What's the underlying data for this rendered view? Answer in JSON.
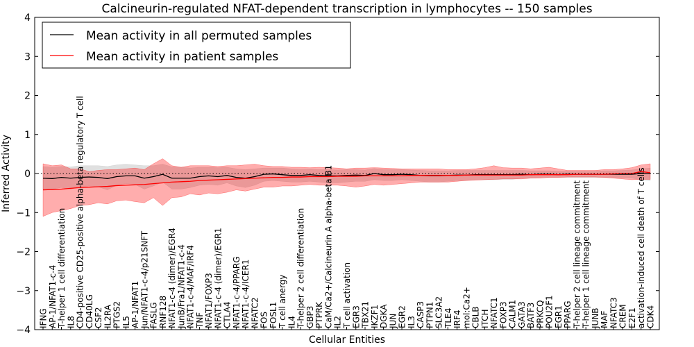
{
  "chart_data": {
    "type": "line",
    "title": "Calcineurin-regulated NFAT-dependent transcription in lymphocytes -- 150 samples",
    "xlabel": "Cellular Entities",
    "ylabel": "Inferred Activity",
    "ylim": [
      -4,
      4
    ],
    "yticks": [
      -4,
      -3,
      -2,
      -1,
      0,
      1,
      2,
      3,
      4
    ],
    "grid": false,
    "legend_position": "top-left",
    "reference_line": {
      "y": 0,
      "style": "dotted"
    },
    "categories": [
      "IFNG",
      "AP-1/NFAT1-c-4",
      "T-helper 1 cell differentiation",
      "IL8",
      "CD4-positive CD25-positive alpha-beta regulatory T cell",
      "CD40LG",
      "CSF2",
      "IL2RA",
      "PTGS2",
      "IL5",
      "AP-1/NFAT1",
      "Jun/NFAT1-c-4/p21SNFT",
      "FASLG",
      "RNF128",
      "NFAT1-c-4 (dimer)/EGR4",
      "JunB/Fra1/NFAT1-c-4",
      "NFAT1-c-4/MAF/IRF4",
      "TNF",
      "NFAT1/FOXP3",
      "NFAT1-c-4 (dimer)/EGR1",
      "CTLA4",
      "NFAT1-c-4/PPARG",
      "NFAT1-c-4/ICER1",
      "NFATC2",
      "FOS",
      "FOSL1",
      "T cell anergy",
      "IL4",
      "T-helper 2 cell differentiation",
      "GBP3",
      "PTPRK",
      "CaM/Ca2+/Calcineurin A alpha-beta B1",
      "IL2",
      "T cell activation",
      "EGR3",
      "TBX21",
      "IKZF1",
      "DGKA",
      "JUN",
      "EGR2",
      "IL3",
      "CASP3",
      "PTPN1",
      "SLC3A2",
      "TLE4",
      "IRF4",
      "mol:Ca2+",
      "CBLB",
      "ITCH",
      "NFATC1",
      "FOXP3",
      "CALM1",
      "GATA3",
      "BATF3",
      "PRKCQ",
      "POU2F1",
      "EGR1",
      "PPARG",
      "T-helper 2 cell lineage commitment",
      "T-helper 1 cell lineage commitment",
      "JUNB",
      "MAF",
      "NFATC3",
      "CREM",
      "E2F1",
      "activation-induced cell death of T cells",
      "CDK4"
    ],
    "series": [
      {
        "name": "Mean activity in all permuted samples",
        "color": "#000000",
        "values": [
          -0.12,
          -0.13,
          -0.1,
          -0.12,
          -0.1,
          -0.09,
          -0.1,
          -0.13,
          -0.08,
          -0.06,
          -0.06,
          -0.12,
          -0.08,
          -0.02,
          -0.12,
          -0.12,
          -0.12,
          -0.08,
          -0.06,
          -0.08,
          -0.05,
          -0.1,
          -0.12,
          -0.08,
          -0.02,
          -0.01,
          -0.03,
          -0.05,
          -0.05,
          -0.03,
          -0.05,
          -0.06,
          -0.06,
          -0.05,
          -0.04,
          -0.05,
          0.0,
          -0.03,
          -0.03,
          -0.02,
          -0.03,
          -0.05,
          -0.06,
          -0.06,
          -0.05,
          -0.04,
          -0.04,
          -0.03,
          -0.03,
          -0.03,
          -0.03,
          -0.03,
          -0.02,
          -0.03,
          -0.02,
          -0.02,
          -0.03,
          -0.02,
          -0.02,
          -0.02,
          -0.02,
          -0.02,
          -0.02,
          -0.02,
          -0.02,
          0.0,
          0.0
        ],
        "band": {
          "color": "#bbbbbb",
          "lower": [
            -0.42,
            -0.4,
            -0.36,
            -0.4,
            -0.35,
            -0.32,
            -0.34,
            -0.42,
            -0.3,
            -0.26,
            -0.28,
            -0.4,
            -0.32,
            -0.22,
            -0.4,
            -0.4,
            -0.36,
            -0.3,
            -0.28,
            -0.3,
            -0.24,
            -0.32,
            -0.36,
            -0.3,
            -0.2,
            -0.18,
            -0.2,
            -0.22,
            -0.22,
            -0.2,
            -0.22,
            -0.24,
            -0.24,
            -0.22,
            -0.2,
            -0.2,
            -0.16,
            -0.18,
            -0.18,
            -0.16,
            -0.18,
            -0.2,
            -0.22,
            -0.22,
            -0.2,
            -0.18,
            -0.18,
            -0.16,
            -0.16,
            -0.16,
            -0.15,
            -0.15,
            -0.12,
            -0.12,
            -0.1,
            -0.1,
            -0.1,
            -0.1,
            -0.1,
            -0.1,
            -0.1,
            -0.1,
            -0.1,
            -0.11,
            -0.12,
            -0.16,
            -0.18
          ],
          "upper": [
            0.18,
            0.16,
            0.18,
            0.17,
            0.2,
            0.2,
            0.2,
            0.18,
            0.22,
            0.24,
            0.22,
            0.2,
            0.2,
            0.24,
            0.17,
            0.16,
            0.14,
            0.16,
            0.16,
            0.15,
            0.16,
            0.12,
            0.1,
            0.12,
            0.14,
            0.14,
            0.14,
            0.12,
            0.11,
            0.12,
            0.1,
            0.1,
            0.09,
            0.1,
            0.1,
            0.09,
            0.13,
            0.1,
            0.1,
            0.1,
            0.09,
            0.08,
            0.07,
            0.07,
            0.07,
            0.08,
            0.08,
            0.08,
            0.08,
            0.08,
            0.08,
            0.08,
            0.08,
            0.07,
            0.07,
            0.07,
            0.06,
            0.06,
            0.06,
            0.06,
            0.06,
            0.07,
            0.07,
            0.08,
            0.09,
            0.12,
            0.14
          ]
        }
      },
      {
        "name": "Mean activity in patient samples",
        "color": "#ff0000",
        "values": [
          -0.42,
          -0.41,
          -0.4,
          -0.38,
          -0.36,
          -0.35,
          -0.34,
          -0.33,
          -0.31,
          -0.3,
          -0.29,
          -0.28,
          -0.26,
          -0.24,
          -0.22,
          -0.21,
          -0.2,
          -0.18,
          -0.17,
          -0.16,
          -0.15,
          -0.14,
          -0.13,
          -0.12,
          -0.11,
          -0.1,
          -0.1,
          -0.09,
          -0.09,
          -0.08,
          -0.08,
          -0.08,
          -0.07,
          -0.07,
          -0.07,
          -0.06,
          -0.06,
          -0.06,
          -0.06,
          -0.06,
          -0.05,
          -0.05,
          -0.05,
          -0.05,
          -0.05,
          -0.05,
          -0.04,
          -0.04,
          -0.04,
          -0.04,
          -0.04,
          -0.04,
          -0.04,
          -0.03,
          -0.03,
          -0.03,
          -0.03,
          -0.03,
          -0.02,
          -0.02,
          -0.02,
          -0.02,
          -0.01,
          0.0,
          0.0,
          0.05,
          0.02
        ],
        "band": {
          "color": "#ff0000",
          "lower": [
            -1.1,
            -1.0,
            -0.95,
            -0.9,
            -0.82,
            -0.8,
            -0.75,
            -0.78,
            -0.7,
            -0.68,
            -0.72,
            -0.75,
            -0.62,
            -0.82,
            -0.62,
            -0.6,
            -0.52,
            -0.55,
            -0.5,
            -0.52,
            -0.48,
            -0.42,
            -0.45,
            -0.4,
            -0.35,
            -0.35,
            -0.32,
            -0.32,
            -0.3,
            -0.28,
            -0.3,
            -0.3,
            -0.3,
            -0.32,
            -0.35,
            -0.32,
            -0.28,
            -0.3,
            -0.28,
            -0.26,
            -0.24,
            -0.22,
            -0.22,
            -0.22,
            -0.22,
            -0.2,
            -0.18,
            -0.17,
            -0.16,
            -0.15,
            -0.14,
            -0.14,
            -0.14,
            -0.12,
            -0.12,
            -0.1,
            -0.1,
            -0.09,
            -0.09,
            -0.09,
            -0.09,
            -0.1,
            -0.12,
            -0.14,
            -0.16,
            -0.15,
            -0.15
          ],
          "upper": [
            0.25,
            0.2,
            0.22,
            0.12,
            0.12,
            0.05,
            0.08,
            0.1,
            0.1,
            0.12,
            0.14,
            0.1,
            0.25,
            0.38,
            0.2,
            0.16,
            0.2,
            0.2,
            0.2,
            0.18,
            0.2,
            0.2,
            0.22,
            0.24,
            0.2,
            0.18,
            0.18,
            0.16,
            0.16,
            0.15,
            0.16,
            0.15,
            0.14,
            0.12,
            0.14,
            0.14,
            0.15,
            0.14,
            0.13,
            0.12,
            0.12,
            0.12,
            0.12,
            0.12,
            0.1,
            0.1,
            0.1,
            0.12,
            0.15,
            0.2,
            0.15,
            0.14,
            0.14,
            0.12,
            0.14,
            0.16,
            0.12,
            0.08,
            0.08,
            0.08,
            0.08,
            0.1,
            0.1,
            0.12,
            0.15,
            0.22,
            0.25
          ]
        }
      }
    ]
  }
}
